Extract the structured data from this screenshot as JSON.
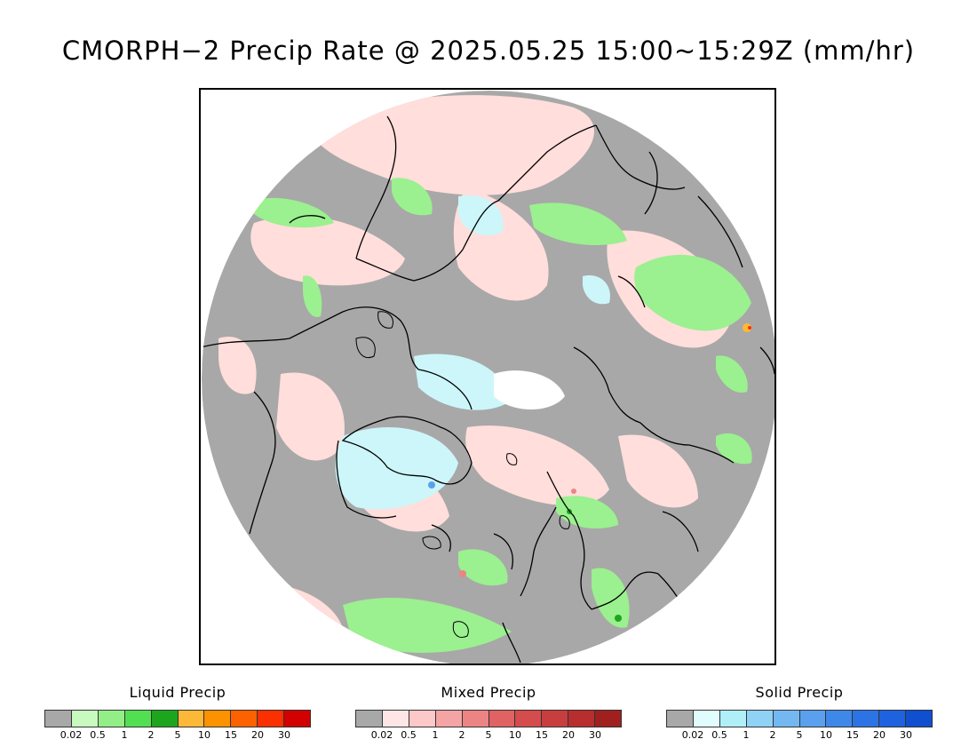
{
  "title": "CMORPH−2 Precip Rate @ 2025.05.25 15:00~15:29Z (mm/hr)",
  "map": {
    "projection": "north-polar-stereographic",
    "colors": {
      "no_precip": "#a8a8a8",
      "ocean_mixed_light": "#ffdedb",
      "liquid_light": "#9bf08f",
      "solid_light": "#ccf6fa",
      "coastline": "#000000"
    }
  },
  "legends": [
    {
      "title": "Liquid Precip",
      "colors": [
        "#a8a8a8",
        "#c8fac0",
        "#94ee88",
        "#52e052",
        "#1ea51e",
        "#fcb836",
        "#fc9200",
        "#fc6200",
        "#fa3000",
        "#d20000"
      ],
      "ticks": [
        "0.02",
        "0.5",
        "1",
        "2",
        "5",
        "10",
        "15",
        "20",
        "30"
      ]
    },
    {
      "title": "Mixed Precip",
      "colors": [
        "#a8a8a8",
        "#ffe6e6",
        "#fcc8c8",
        "#f4a4a4",
        "#ec8484",
        "#e06262",
        "#d44c4c",
        "#c83e3e",
        "#b82e2e",
        "#a02020"
      ],
      "ticks": [
        "0.02",
        "0.5",
        "1",
        "2",
        "5",
        "10",
        "15",
        "20",
        "30"
      ]
    },
    {
      "title": "Solid Precip",
      "colors": [
        "#a8a8a8",
        "#e0fcfc",
        "#b0eef8",
        "#90d2f6",
        "#74b8f2",
        "#5aa0ee",
        "#3e88ea",
        "#2c74e6",
        "#1e62e0",
        "#1050d0"
      ],
      "ticks": [
        "0.02",
        "0.5",
        "1",
        "2",
        "5",
        "10",
        "15",
        "20",
        "30"
      ]
    }
  ]
}
